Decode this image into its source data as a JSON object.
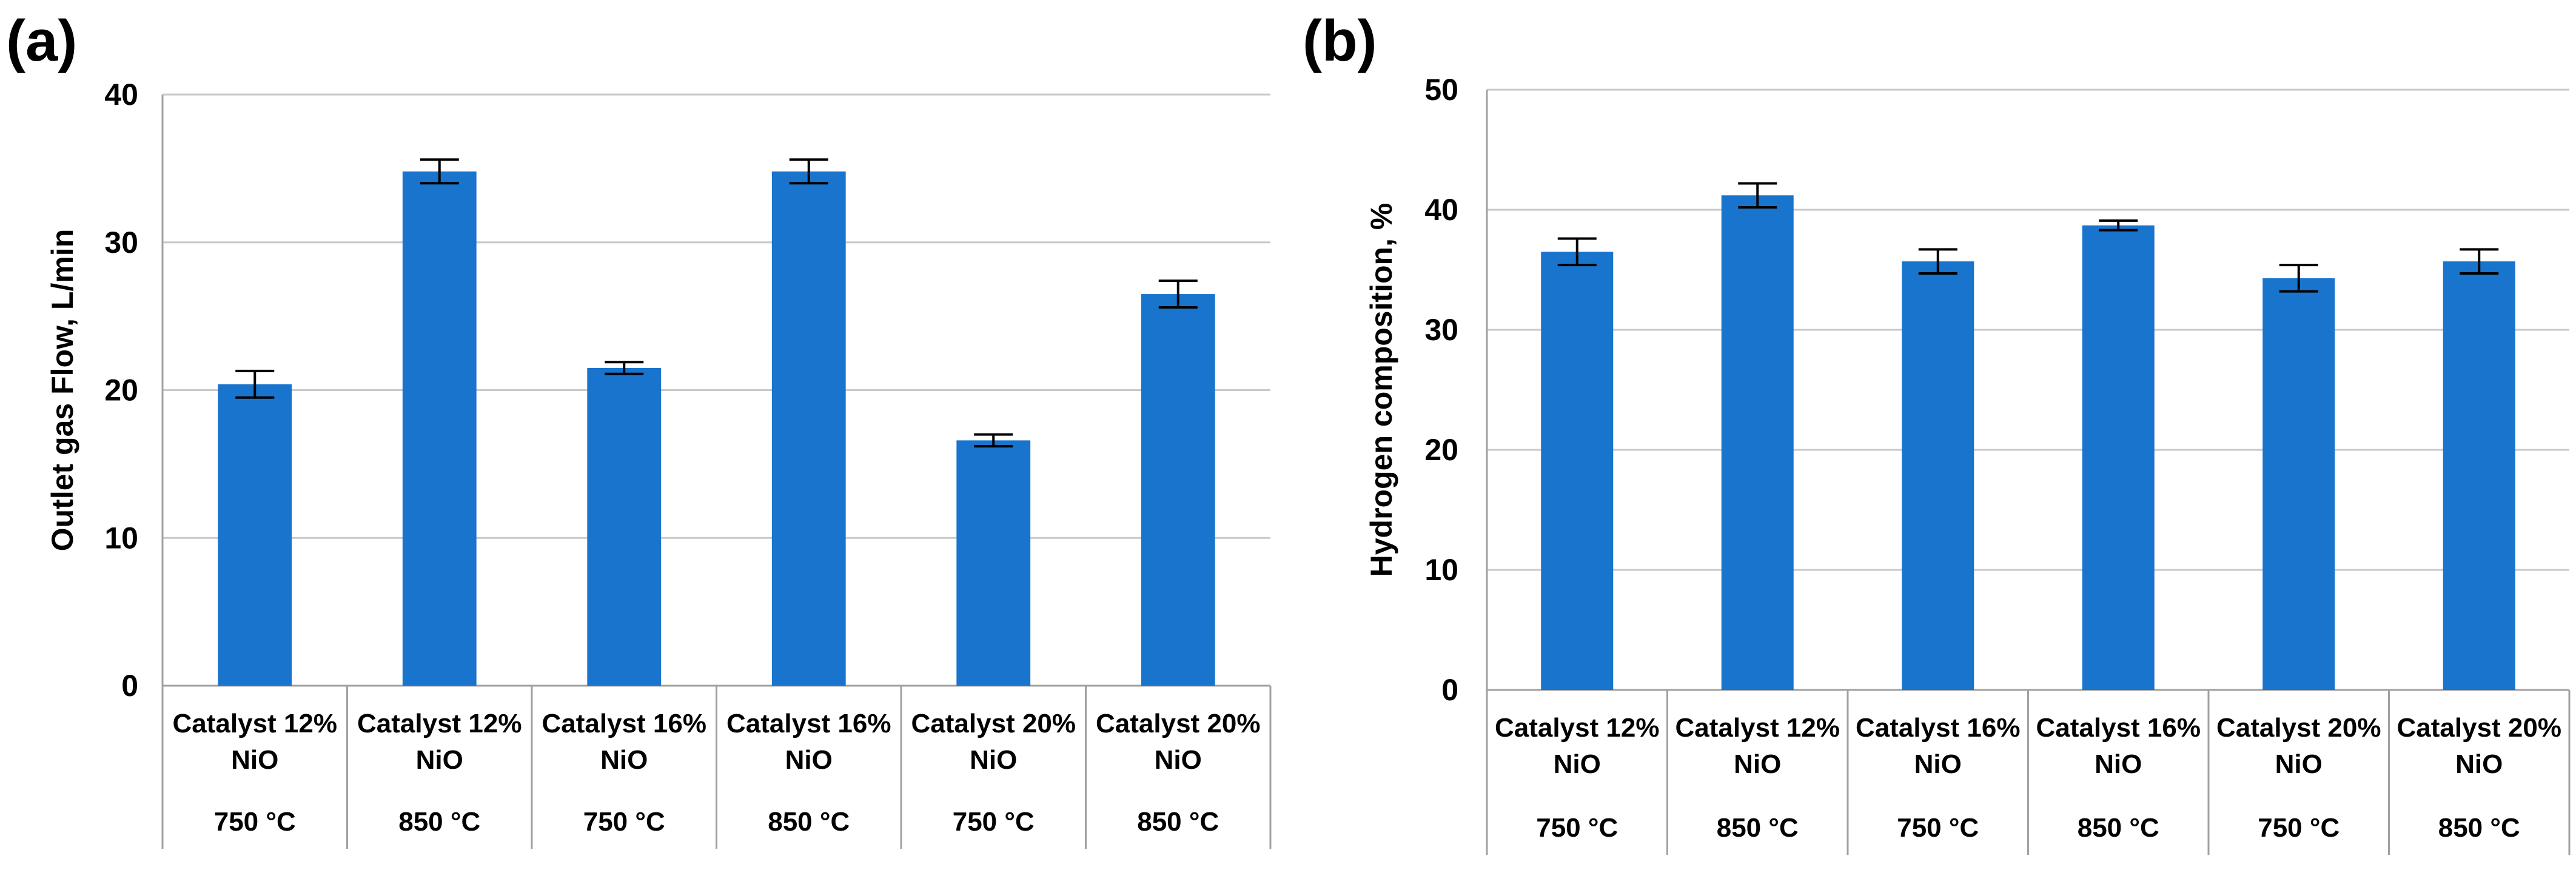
{
  "colors": {
    "bar": "#1874cd",
    "grid": "#c8c8c8",
    "axis": "#a0a0a0",
    "error_bar": "#000000"
  },
  "chart_data": [
    {
      "panel": "(a)",
      "type": "bar",
      "categories": [
        {
          "line1": "Catalyst 12%",
          "line2": "NiO",
          "line3": "750 °C"
        },
        {
          "line1": "Catalyst 12%",
          "line2": "NiO",
          "line3": "850 °C"
        },
        {
          "line1": "Catalyst 16%",
          "line2": "NiO",
          "line3": "750 °C"
        },
        {
          "line1": "Catalyst 16%",
          "line2": "NiO",
          "line3": "850 °C"
        },
        {
          "line1": "Catalyst 20%",
          "line2": "NiO",
          "line3": "750 °C"
        },
        {
          "line1": "Catalyst 20%",
          "line2": "NiO",
          "line3": "850 °C"
        }
      ],
      "values": [
        20.4,
        34.8,
        21.5,
        34.8,
        16.6,
        26.5
      ],
      "errors": [
        0.9,
        0.8,
        0.4,
        0.8,
        0.4,
        0.9
      ],
      "ylabel": "Outlet gas Flow, L/min",
      "xlabel": "",
      "ylim": [
        0,
        40
      ],
      "yticks": [
        0,
        10,
        20,
        30,
        40
      ],
      "grid": true
    },
    {
      "panel": "(b)",
      "type": "bar",
      "categories": [
        {
          "line1": "Catalyst 12%",
          "line2": "NiO",
          "line3": "750 °C"
        },
        {
          "line1": "Catalyst 12%",
          "line2": "NiO",
          "line3": "850 °C"
        },
        {
          "line1": "Catalyst 16%",
          "line2": "NiO",
          "line3": "750 °C"
        },
        {
          "line1": "Catalyst 16%",
          "line2": "NiO",
          "line3": "850 °C"
        },
        {
          "line1": "Catalyst 20%",
          "line2": "NiO",
          "line3": "750 °C"
        },
        {
          "line1": "Catalyst 20%",
          "line2": "NiO",
          "line3": "850 °C"
        }
      ],
      "values": [
        36.5,
        41.2,
        35.7,
        38.7,
        34.3,
        35.7
      ],
      "errors": [
        1.1,
        1.0,
        1.0,
        0.4,
        1.1,
        1.0
      ],
      "ylabel": "Hydrogen composition, %",
      "xlabel": "",
      "ylim": [
        0,
        50
      ],
      "yticks": [
        0,
        10,
        20,
        30,
        40,
        50
      ],
      "grid": true
    }
  ]
}
